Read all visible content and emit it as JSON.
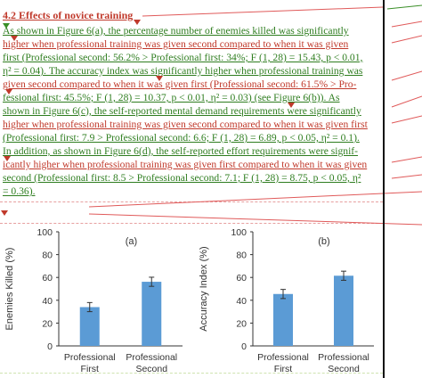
{
  "section": {
    "number": "4.2",
    "title": "Effects of novice training"
  },
  "paragraph_lines": [
    "As shown in Figure 6(a), the percentage number of enemies killed was significantly",
    "higher when professional training was given second compared to when it was given",
    "first (Professional second: 56.2% > Professional first: 34%; F (1, 28) = 15.43, p < 0.01,",
    "η² = 0.04). The accuracy index was significantly higher when professional training was",
    "given second compared to when it was given first (Professional second: 61.5% > Pro-",
    "fessional first: 45.5%; F (1, 28) = 10.37, p < 0.01, η² = 0.03) (see Figure 6(b)). As",
    "shown in Figure 6(c), the self-reported mental demand requirements were significantly",
    "higher when professional training was given second compared to when it was given first",
    "(Professional first: 7.9 > Professional second: 6.6; F (1, 28) = 6.89, p < 0.05, η² = 0.1).",
    "In addition, as shown in Figure 6(d), the self-reported effort requirements were signif-",
    "icantly higher when professional training was given first compared to when it was given",
    "second (Professional first: 8.5 > Professional second: 7.1; F (1, 28) = 8.75, p < 0.05, η²",
    "= 0.36)."
  ],
  "colors": {
    "deleted_text": "#c0392b",
    "inserted_text": "#2e7d1f",
    "bar_fill": "#5b9bd5",
    "tracking_line": "#e05a5a"
  },
  "chart_data": [
    {
      "type": "bar",
      "title": "(a)",
      "categories": [
        "Professional First",
        "Professional Second"
      ],
      "category_lines": [
        [
          "Professional",
          "First"
        ],
        [
          "Professional",
          "Second"
        ]
      ],
      "values": [
        34,
        56.2
      ],
      "error": [
        4,
        4
      ],
      "ylabel": "Enemies Killed (%)",
      "xlabel": "",
      "ylim": [
        0,
        100
      ],
      "yticks": [
        "0",
        "20",
        "40",
        "60",
        "80",
        "100"
      ],
      "grid": false
    },
    {
      "type": "bar",
      "title": "(b)",
      "categories": [
        "Professional First",
        "Professional Second"
      ],
      "category_lines": [
        [
          "Professional",
          "First"
        ],
        [
          "Professional",
          "Second"
        ]
      ],
      "values": [
        45.5,
        61.5
      ],
      "error": [
        4,
        4
      ],
      "ylabel": "Accuracy Index (%)",
      "xlabel": "",
      "ylim": [
        0,
        100
      ],
      "yticks": [
        "0",
        "20",
        "40",
        "60",
        "80",
        "100"
      ],
      "grid": false
    }
  ]
}
